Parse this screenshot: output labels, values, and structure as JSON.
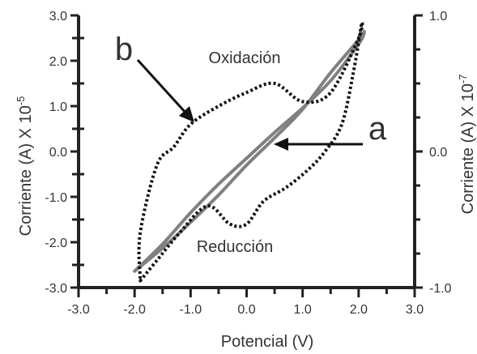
{
  "chart_data": {
    "type": "line",
    "xlabel": "Potencial (V)",
    "ylabel_left": "Corriente (A) X 10",
    "ylabel_left_exp": "-5",
    "ylabel_right": "Corriente (A) X 10",
    "ylabel_right_exp": "-7",
    "xlim": [
      -3.0,
      3.0
    ],
    "ylim_left": [
      -3.0,
      3.0
    ],
    "ylim_right": [
      -1.0,
      1.0
    ],
    "x_ticks": [
      "-3.0",
      "-2.0",
      "-1.0",
      "0.0",
      "1.0",
      "2.0",
      "3.0"
    ],
    "y_left_ticks": [
      "3.0",
      "2.0",
      "1.0",
      "0.0",
      "-1.0",
      "-2.0",
      "-3.0"
    ],
    "y_right_ticks": [
      "1.0",
      "0.0",
      "-1.0"
    ],
    "grid": false,
    "annotations": {
      "oxidacion": "Oxidación",
      "reduccion": "Reducción",
      "label_a": "a",
      "label_b": "b"
    },
    "series": [
      {
        "id": "a",
        "axis": "right",
        "style": "solid",
        "color": "#808080",
        "x": [
          -2.0,
          -1.5,
          -1.0,
          -0.5,
          0.0,
          0.5,
          1.0,
          1.5,
          2.0,
          2.1,
          2.0,
          1.5,
          1.0,
          0.5,
          0.0,
          -0.5,
          -1.0,
          -1.5,
          -2.0
        ],
        "y": [
          -0.88,
          -0.68,
          -0.45,
          -0.24,
          -0.05,
          0.14,
          0.32,
          0.52,
          0.79,
          0.88,
          0.82,
          0.58,
          0.31,
          0.1,
          -0.1,
          -0.32,
          -0.52,
          -0.71,
          -0.88
        ]
      },
      {
        "id": "b",
        "axis": "left",
        "style": "dotted",
        "color": "#111111",
        "x": [
          -1.9,
          -1.9,
          -1.6,
          -1.3,
          -1.0,
          -0.5,
          0.0,
          0.5,
          1.0,
          1.5,
          2.0,
          2.05,
          1.9,
          1.7,
          1.4,
          1.1,
          0.7,
          0.3,
          0.0,
          -0.3,
          -0.7,
          -1.2,
          -1.6,
          -1.9
        ],
        "y": [
          -2.8,
          -1.8,
          -0.3,
          0.1,
          0.6,
          1.0,
          1.3,
          1.5,
          1.1,
          1.3,
          2.5,
          2.8,
          1.7,
          0.6,
          0.0,
          -0.4,
          -0.8,
          -1.1,
          -1.6,
          -1.6,
          -1.2,
          -1.8,
          -2.4,
          -2.85
        ]
      }
    ]
  }
}
